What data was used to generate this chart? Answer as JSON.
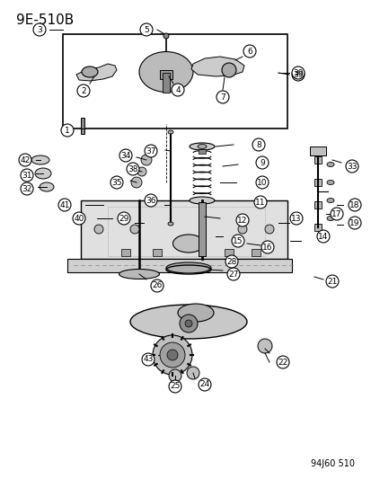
{
  "title_top": "9E-510B",
  "caption_bottom": "94J60 510",
  "bg_color": "#ffffff",
  "line_color": "#000000",
  "text_color": "#000000",
  "fig_width": 4.14,
  "fig_height": 5.33,
  "dpi": 100,
  "label_fontsize": 7.5,
  "title_fontsize": 11,
  "caption_fontsize": 7
}
